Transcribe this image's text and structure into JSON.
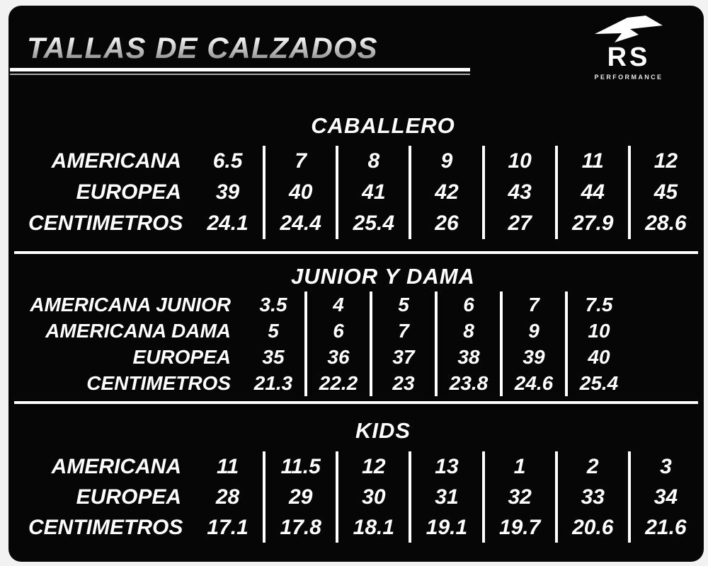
{
  "page": {
    "title": "TALLAS DE CALZADOS"
  },
  "logo": {
    "brand": "RS",
    "subtitle": "PERFORMANCE",
    "icon": "rs-swoosh-icon"
  },
  "colors": {
    "page_bg": "#f2f2f2",
    "card_bg": "#060606",
    "text": "#ffffff",
    "title_gradient_top": "#ffffff",
    "title_gradient_bottom": "#7e7e7e",
    "divider": "#ffffff"
  },
  "sections": [
    {
      "id": "caballero",
      "title": "CABALLERO",
      "rows": [
        {
          "label": "AMERICANA",
          "values": [
            "6.5",
            "7",
            "8",
            "9",
            "10",
            "11",
            "12"
          ]
        },
        {
          "label": "EUROPEA",
          "values": [
            "39",
            "40",
            "41",
            "42",
            "43",
            "44",
            "45"
          ]
        },
        {
          "label": "CENTIMETROS",
          "values": [
            "24.1",
            "24.4",
            "25.4",
            "26",
            "27",
            "27.9",
            "28.6"
          ]
        }
      ]
    },
    {
      "id": "junior-y-dama",
      "title": "JUNIOR Y DAMA",
      "rows": [
        {
          "label": "AMERICANA JUNIOR",
          "values": [
            "3.5",
            "4",
            "5",
            "6",
            "7",
            "7.5"
          ]
        },
        {
          "label": "AMERICANA DAMA",
          "values": [
            "5",
            "6",
            "7",
            "8",
            "9",
            "10"
          ]
        },
        {
          "label": "EUROPEA",
          "values": [
            "35",
            "36",
            "37",
            "38",
            "39",
            "40"
          ]
        },
        {
          "label": "CENTIMETROS",
          "values": [
            "21.3",
            "22.2",
            "23",
            "23.8",
            "24.6",
            "25.4"
          ]
        }
      ]
    },
    {
      "id": "kids",
      "title": "KIDS",
      "rows": [
        {
          "label": "AMERICANA",
          "values": [
            "11",
            "11.5",
            "12",
            "13",
            "1",
            "2",
            "3"
          ]
        },
        {
          "label": "EUROPEA",
          "values": [
            "28",
            "29",
            "30",
            "31",
            "32",
            "33",
            "34"
          ]
        },
        {
          "label": "CENTIMETROS",
          "values": [
            "17.1",
            "17.8",
            "18.1",
            "19.1",
            "19.7",
            "20.6",
            "21.6"
          ]
        }
      ]
    }
  ],
  "chart_data": [
    {
      "type": "table",
      "title": "CABALLERO",
      "row_headers": [
        "AMERICANA",
        "EUROPEA",
        "CENTIMETROS"
      ],
      "rows": [
        [
          "6.5",
          "7",
          "8",
          "9",
          "10",
          "11",
          "12"
        ],
        [
          "39",
          "40",
          "41",
          "42",
          "43",
          "44",
          "45"
        ],
        [
          "24.1",
          "24.4",
          "25.4",
          "26",
          "27",
          "27.9",
          "28.6"
        ]
      ]
    },
    {
      "type": "table",
      "title": "JUNIOR Y DAMA",
      "row_headers": [
        "AMERICANA JUNIOR",
        "AMERICANA DAMA",
        "EUROPEA",
        "CENTIMETROS"
      ],
      "rows": [
        [
          "3.5",
          "4",
          "5",
          "6",
          "7",
          "7.5"
        ],
        [
          "5",
          "6",
          "7",
          "8",
          "9",
          "10"
        ],
        [
          "35",
          "36",
          "37",
          "38",
          "39",
          "40"
        ],
        [
          "21.3",
          "22.2",
          "23",
          "23.8",
          "24.6",
          "25.4"
        ]
      ]
    },
    {
      "type": "table",
      "title": "KIDS",
      "row_headers": [
        "AMERICANA",
        "EUROPEA",
        "CENTIMETROS"
      ],
      "rows": [
        [
          "11",
          "11.5",
          "12",
          "13",
          "1",
          "2",
          "3"
        ],
        [
          "28",
          "29",
          "30",
          "31",
          "32",
          "33",
          "34"
        ],
        [
          "17.1",
          "17.8",
          "18.1",
          "19.1",
          "19.7",
          "20.6",
          "21.6"
        ]
      ]
    }
  ]
}
